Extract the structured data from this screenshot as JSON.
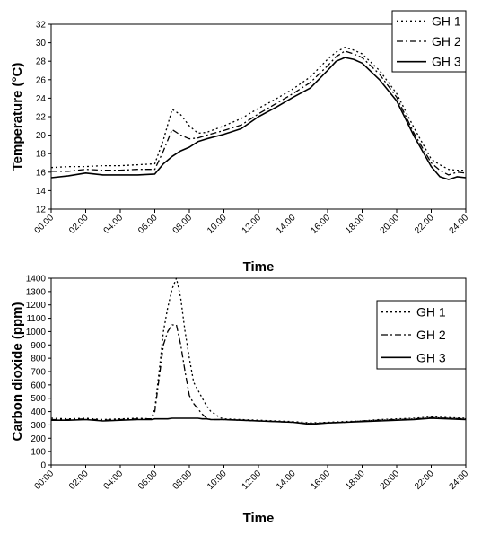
{
  "chart_data": [
    {
      "type": "line",
      "xlabel": "Time",
      "ylabel": "Temperature (°C)",
      "xlim": [
        0,
        24
      ],
      "ylim": [
        12,
        32
      ],
      "xticks": [
        "00:00",
        "02:00",
        "04:00",
        "06:00",
        "08:00",
        "10:00",
        "12:00",
        "14:00",
        "16:00",
        "18:00",
        "20:00",
        "22:00",
        "24:00"
      ],
      "yticks": [
        "12",
        "14",
        "16",
        "18",
        "20",
        "22",
        "24",
        "26",
        "28",
        "30",
        "32"
      ],
      "grid": false,
      "legend": "top-right",
      "x": [
        0,
        1,
        2,
        3,
        4,
        5,
        6,
        6.5,
        7,
        7.5,
        8,
        8.5,
        9,
        10,
        11,
        12,
        13,
        14,
        15,
        16,
        16.5,
        17,
        17.5,
        18,
        19,
        20,
        21,
        22,
        22.5,
        23,
        23.5,
        24
      ],
      "series": [
        {
          "name": "GH 1",
          "style": "dotted",
          "values": [
            16.5,
            16.6,
            16.6,
            16.7,
            16.7,
            16.8,
            16.9,
            19.5,
            22.8,
            22.2,
            21.0,
            20.2,
            20.3,
            21.0,
            21.8,
            22.9,
            23.9,
            25.0,
            26.3,
            28.2,
            29.0,
            29.5,
            29.2,
            28.8,
            27.0,
            24.5,
            20.8,
            17.4,
            16.8,
            16.3,
            16.2,
            16.2
          ]
        },
        {
          "name": "GH 2",
          "style": "dashdot",
          "values": [
            16.1,
            16.1,
            16.3,
            16.2,
            16.2,
            16.3,
            16.3,
            18.3,
            20.6,
            20.0,
            19.6,
            19.7,
            20.0,
            20.5,
            21.1,
            22.3,
            23.4,
            24.5,
            25.7,
            27.5,
            28.5,
            29.1,
            28.8,
            28.4,
            26.6,
            24.1,
            20.2,
            17.0,
            16.2,
            15.7,
            16.0,
            15.9
          ]
        },
        {
          "name": "GH 3",
          "style": "solid",
          "values": [
            15.4,
            15.6,
            15.9,
            15.7,
            15.7,
            15.7,
            15.8,
            16.9,
            17.7,
            18.3,
            18.7,
            19.3,
            19.6,
            20.1,
            20.7,
            22.0,
            23.0,
            24.1,
            25.1,
            27.0,
            28.0,
            28.4,
            28.2,
            27.8,
            26.0,
            23.7,
            19.9,
            16.6,
            15.5,
            15.2,
            15.5,
            15.4
          ]
        }
      ]
    },
    {
      "type": "line",
      "xlabel": "Time",
      "ylabel": "Carbon dioxide (ppm)",
      "xlim": [
        0,
        24
      ],
      "ylim": [
        0,
        1400
      ],
      "xticks": [
        "00:00",
        "02:00",
        "04:00",
        "06:00",
        "08:00",
        "10:00",
        "12:00",
        "14:00",
        "16:00",
        "18:00",
        "20:00",
        "22:00",
        "24:00"
      ],
      "yticks": [
        "0",
        "100",
        "200",
        "300",
        "400",
        "500",
        "600",
        "700",
        "800",
        "900",
        "1000",
        "1100",
        "1200",
        "1300",
        "1400"
      ],
      "grid": false,
      "legend": "top-right",
      "x": [
        0,
        1,
        2,
        3,
        4,
        5,
        5.8,
        6,
        6.25,
        6.5,
        6.75,
        7,
        7.25,
        7.5,
        7.75,
        8,
        8.25,
        8.5,
        8.75,
        9,
        9.25,
        9.5,
        9.75,
        10,
        11,
        12,
        13,
        14,
        15,
        16,
        17,
        18,
        19,
        20,
        21,
        22,
        23,
        24
      ],
      "series": [
        {
          "name": "GH 1",
          "style": "dotted",
          "values": [
            350,
            345,
            350,
            340,
            345,
            350,
            345,
            420,
            700,
            1000,
            1180,
            1320,
            1400,
            1250,
            1000,
            800,
            620,
            560,
            500,
            440,
            400,
            380,
            355,
            345,
            340,
            335,
            330,
            325,
            315,
            320,
            325,
            330,
            340,
            345,
            350,
            360,
            355,
            350
          ]
        },
        {
          "name": "GH 2",
          "style": "dashdot",
          "values": [
            340,
            340,
            345,
            335,
            340,
            345,
            345,
            400,
            650,
            900,
            1000,
            1050,
            1050,
            900,
            700,
            520,
            460,
            420,
            380,
            350,
            340,
            340,
            340,
            340,
            335,
            330,
            325,
            320,
            310,
            315,
            320,
            330,
            335,
            340,
            345,
            355,
            350,
            345
          ]
        },
        {
          "name": "GH 3",
          "style": "solid",
          "values": [
            335,
            335,
            340,
            330,
            335,
            340,
            340,
            345,
            345,
            345,
            345,
            350,
            350,
            350,
            350,
            350,
            350,
            350,
            345,
            345,
            340,
            340,
            340,
            340,
            335,
            330,
            325,
            320,
            305,
            315,
            320,
            325,
            330,
            335,
            340,
            350,
            345,
            340
          ]
        }
      ]
    }
  ]
}
